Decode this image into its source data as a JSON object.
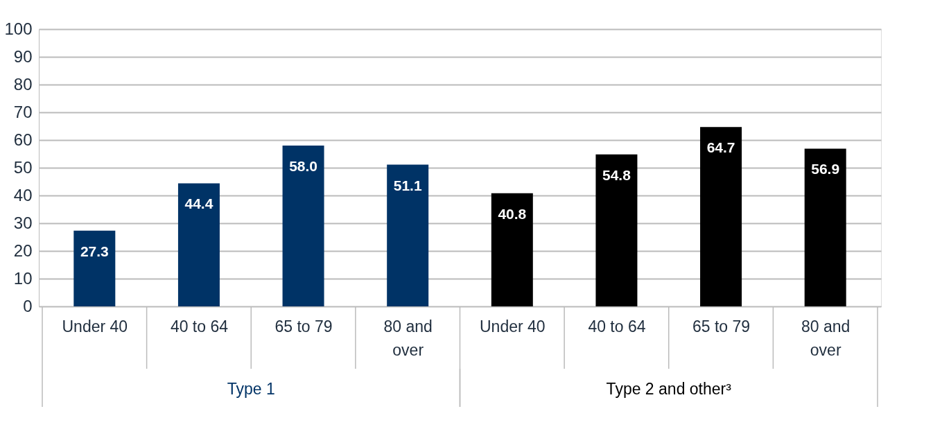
{
  "chart_data": {
    "type": "bar",
    "categories": [
      "Under 40",
      "40 to 64",
      "65 to 79",
      "80 and over",
      "Under 40",
      "40 to 64",
      "65 to 79",
      "80 and over"
    ],
    "series": [
      {
        "name": "Type 1",
        "color": "#003366",
        "values": [
          27.3,
          44.4,
          58.0,
          51.1,
          null,
          null,
          null,
          null
        ],
        "value_labels": [
          "27.3",
          "44.4",
          "58.0",
          "51.1",
          null,
          null,
          null,
          null
        ]
      },
      {
        "name": "Type 2 and other³",
        "color": "#000000",
        "values": [
          null,
          null,
          null,
          null,
          40.8,
          54.8,
          64.7,
          56.9
        ],
        "value_labels": [
          null,
          null,
          null,
          null,
          "40.8",
          "54.8",
          "64.7",
          "56.9"
        ]
      }
    ],
    "ylim": [
      0,
      100
    ],
    "yticks": [
      0,
      10,
      20,
      30,
      40,
      50,
      60,
      70,
      80,
      90,
      100
    ],
    "grid": "y"
  }
}
